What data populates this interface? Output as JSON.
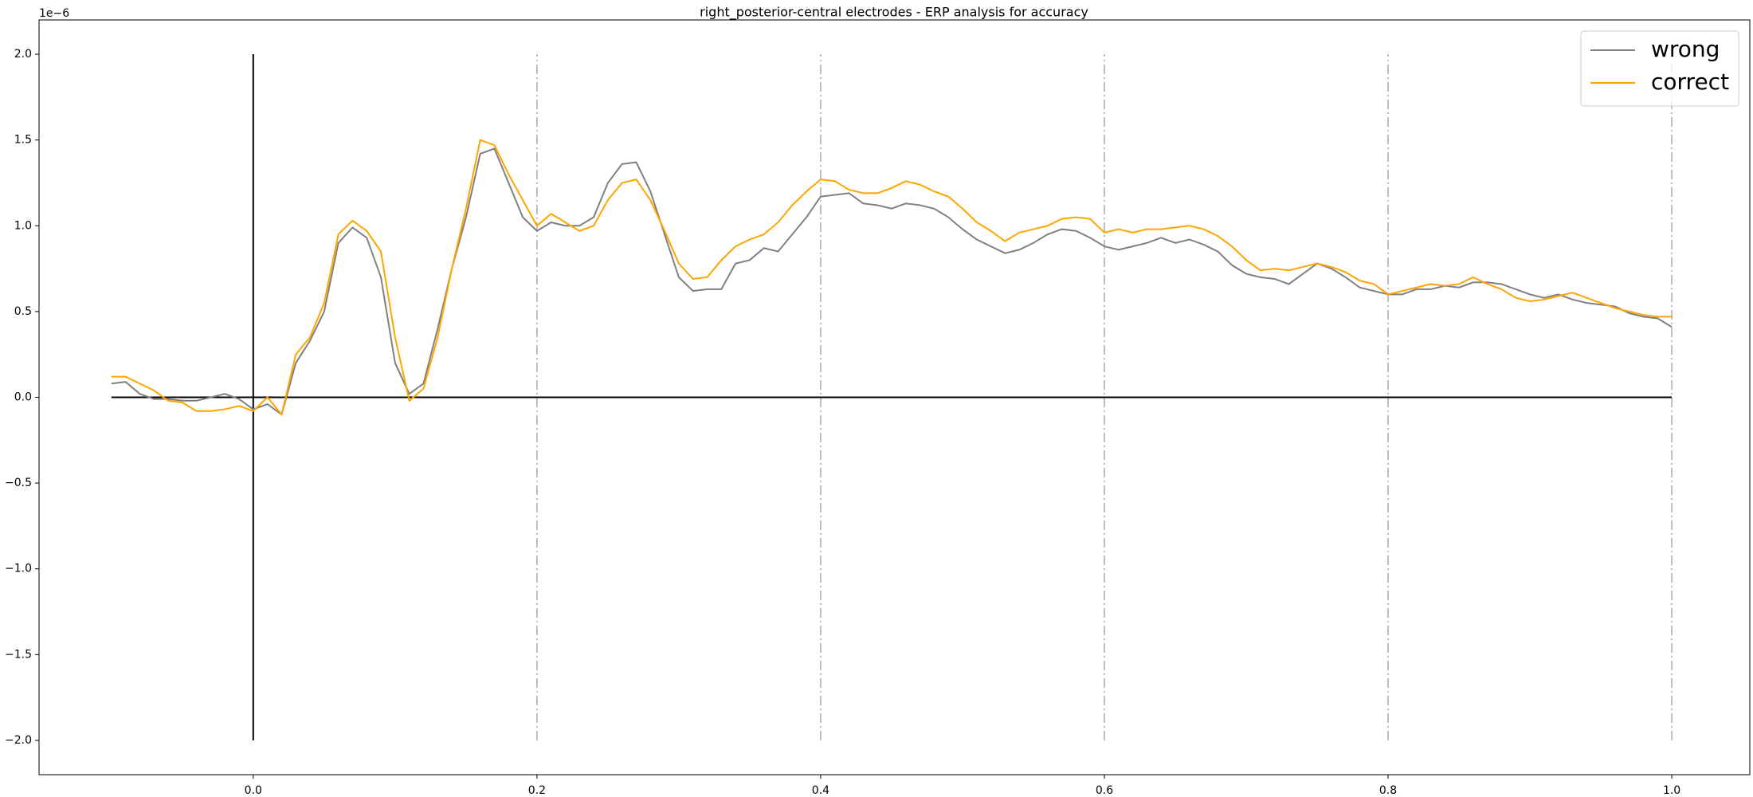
{
  "chart_data": {
    "type": "line",
    "title": "right_posterior-central electrodes - ERP analysis for accuracy",
    "y_offset_label": "1e−6",
    "x": [
      -0.1,
      -0.09,
      -0.08,
      -0.07,
      -0.06,
      -0.05,
      -0.04,
      -0.03,
      -0.02,
      -0.01,
      0,
      0.01,
      0.02,
      0.03,
      0.04,
      0.05,
      0.06,
      0.07,
      0.08,
      0.09,
      0.1,
      0.11,
      0.12,
      0.13,
      0.14,
      0.15,
      0.16,
      0.17,
      0.18,
      0.19,
      0.2,
      0.21,
      0.22,
      0.23,
      0.24,
      0.25,
      0.26,
      0.27,
      0.28,
      0.29,
      0.3,
      0.31,
      0.32,
      0.33,
      0.34,
      0.35,
      0.36,
      0.37,
      0.38,
      0.39,
      0.4,
      0.41,
      0.42,
      0.43,
      0.44,
      0.45,
      0.46,
      0.47,
      0.48,
      0.49,
      0.5,
      0.51,
      0.52,
      0.53,
      0.54,
      0.55,
      0.56,
      0.57,
      0.58,
      0.59,
      0.6,
      0.61,
      0.62,
      0.63,
      0.64,
      0.65,
      0.66,
      0.67,
      0.68,
      0.69,
      0.7,
      0.71,
      0.72,
      0.73,
      0.74,
      0.75,
      0.76,
      0.77,
      0.78,
      0.79,
      0.8,
      0.81,
      0.82,
      0.83,
      0.84,
      0.85,
      0.86,
      0.87,
      0.88,
      0.89,
      0.9,
      0.91,
      0.92,
      0.93,
      0.94,
      0.95,
      0.96,
      0.97,
      0.98,
      0.99,
      1.0
    ],
    "series": [
      {
        "name": "wrong",
        "color": "#808080",
        "values": [
          0.08,
          0.09,
          0.02,
          -0.01,
          -0.01,
          -0.02,
          -0.02,
          0,
          0.02,
          -0.01,
          -0.07,
          -0.04,
          -0.1,
          0.2,
          0.33,
          0.5,
          0.9,
          0.99,
          0.93,
          0.7,
          0.2,
          0.02,
          0.08,
          0.4,
          0.75,
          1.05,
          1.42,
          1.45,
          1.25,
          1.05,
          0.97,
          1.02,
          1,
          1,
          1.05,
          1.25,
          1.36,
          1.37,
          1.2,
          0.95,
          0.7,
          0.62,
          0.63,
          0.63,
          0.78,
          0.8,
          0.87,
          0.85,
          0.95,
          1.05,
          1.17,
          1.18,
          1.19,
          1.13,
          1.12,
          1.1,
          1.13,
          1.12,
          1.1,
          1.05,
          0.98,
          0.92,
          0.88,
          0.84,
          0.86,
          0.9,
          0.95,
          0.98,
          0.97,
          0.93,
          0.88,
          0.86,
          0.88,
          0.9,
          0.93,
          0.9,
          0.92,
          0.89,
          0.85,
          0.77,
          0.72,
          0.7,
          0.69,
          0.66,
          0.72,
          0.78,
          0.75,
          0.7,
          0.64,
          0.62,
          0.6,
          0.6,
          0.63,
          0.63,
          0.65,
          0.64,
          0.67,
          0.67,
          0.66,
          0.63,
          0.6,
          0.58,
          0.6,
          0.57,
          0.55,
          0.54,
          0.53,
          0.49,
          0.47,
          0.46,
          0.41
        ]
      },
      {
        "name": "correct",
        "color": "#ffa500",
        "values": [
          0.12,
          0.12,
          0.08,
          0.04,
          -0.02,
          -0.03,
          -0.08,
          -0.08,
          -0.07,
          -0.05,
          -0.08,
          0,
          -0.1,
          0.25,
          0.35,
          0.55,
          0.95,
          1.03,
          0.97,
          0.85,
          0.35,
          -0.02,
          0.05,
          0.35,
          0.75,
          1.1,
          1.5,
          1.47,
          1.3,
          1.15,
          1,
          1.07,
          1.02,
          0.97,
          1,
          1.15,
          1.25,
          1.27,
          1.15,
          0.97,
          0.78,
          0.69,
          0.7,
          0.8,
          0.88,
          0.92,
          0.95,
          1.02,
          1.12,
          1.2,
          1.27,
          1.26,
          1.21,
          1.19,
          1.19,
          1.22,
          1.26,
          1.24,
          1.2,
          1.17,
          1.1,
          1.02,
          0.97,
          0.91,
          0.96,
          0.98,
          1,
          1.04,
          1.05,
          1.04,
          0.96,
          0.98,
          0.96,
          0.98,
          0.98,
          0.99,
          1,
          0.98,
          0.94,
          0.88,
          0.8,
          0.74,
          0.75,
          0.74,
          0.76,
          0.78,
          0.76,
          0.73,
          0.68,
          0.66,
          0.6,
          0.62,
          0.64,
          0.66,
          0.65,
          0.66,
          0.7,
          0.66,
          0.63,
          0.58,
          0.56,
          0.57,
          0.59,
          0.61,
          0.58,
          0.55,
          0.52,
          0.5,
          0.48,
          0.47,
          0.47
        ]
      }
    ],
    "xlim": [
      -0.151,
      1.055
    ],
    "ylim": [
      -2.2,
      2.2
    ],
    "xticks": [
      {
        "value": 0,
        "label": "0.0"
      },
      0.2,
      0.4,
      0.6,
      0.8,
      {
        "value": 1,
        "label": "1.0"
      }
    ],
    "yticks": [
      {
        "value": -2,
        "label": "−2.0"
      },
      {
        "value": -1.5,
        "label": "−1.5"
      },
      {
        "value": -1,
        "label": "−1.0"
      },
      {
        "value": -0.5,
        "label": "−0.5"
      },
      {
        "value": 0,
        "label": "0.0"
      },
      0.5,
      {
        "value": 1,
        "label": "1.0"
      },
      1.5,
      {
        "value": 2,
        "label": "2.0"
      }
    ],
    "onset_line": {
      "x": 0,
      "ymin": -2,
      "ymax": 2
    },
    "baseline": {
      "y": 0,
      "xmin": -0.1,
      "xmax": 1.0
    },
    "marker_lines": [
      0.2,
      0.4,
      0.6,
      0.8,
      1.0
    ],
    "legend": "upper right"
  }
}
